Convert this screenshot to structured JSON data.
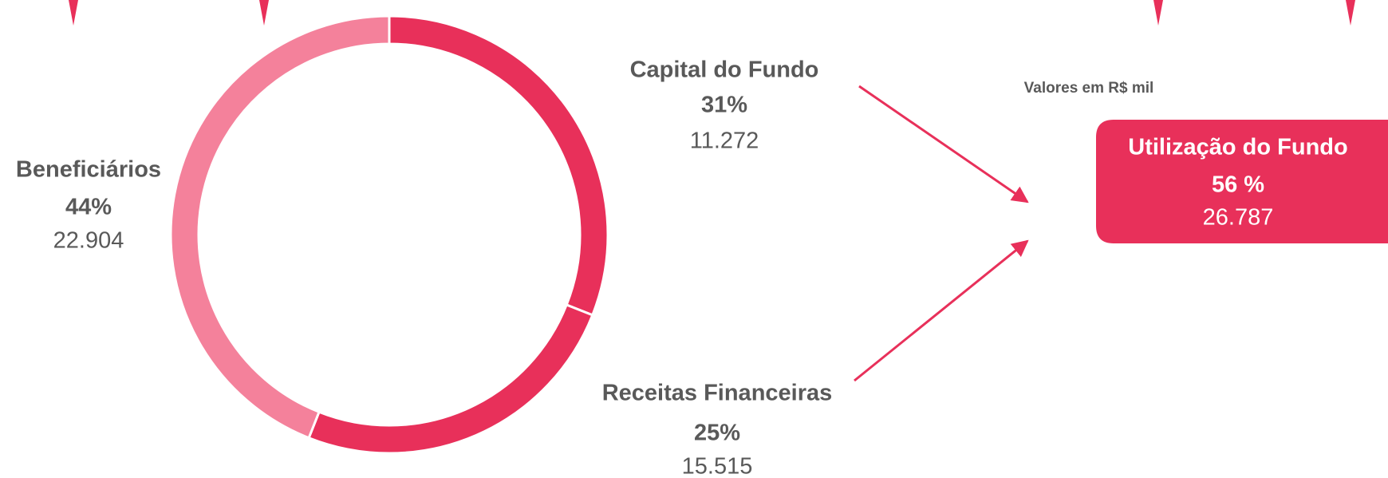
{
  "chart_data": {
    "type": "pie",
    "categories": [
      "Capital do Fundo",
      "Receitas Financeiras",
      "Beneficiários"
    ],
    "values": [
      31,
      25,
      44
    ],
    "value_labels": [
      "31%",
      "25%",
      "44%"
    ],
    "amounts": [
      11272,
      15515,
      22904
    ],
    "amount_labels": [
      "11.272",
      "15.515",
      "22.904"
    ],
    "colors": [
      "#e8305a",
      "#e8305a",
      "#f4819b"
    ],
    "note": "Valores em R$ mil",
    "summary": {
      "title": "Utilização do Fundo",
      "percent": 56,
      "percent_label": "56 %",
      "amount": 26787,
      "amount_label": "26.787"
    }
  }
}
